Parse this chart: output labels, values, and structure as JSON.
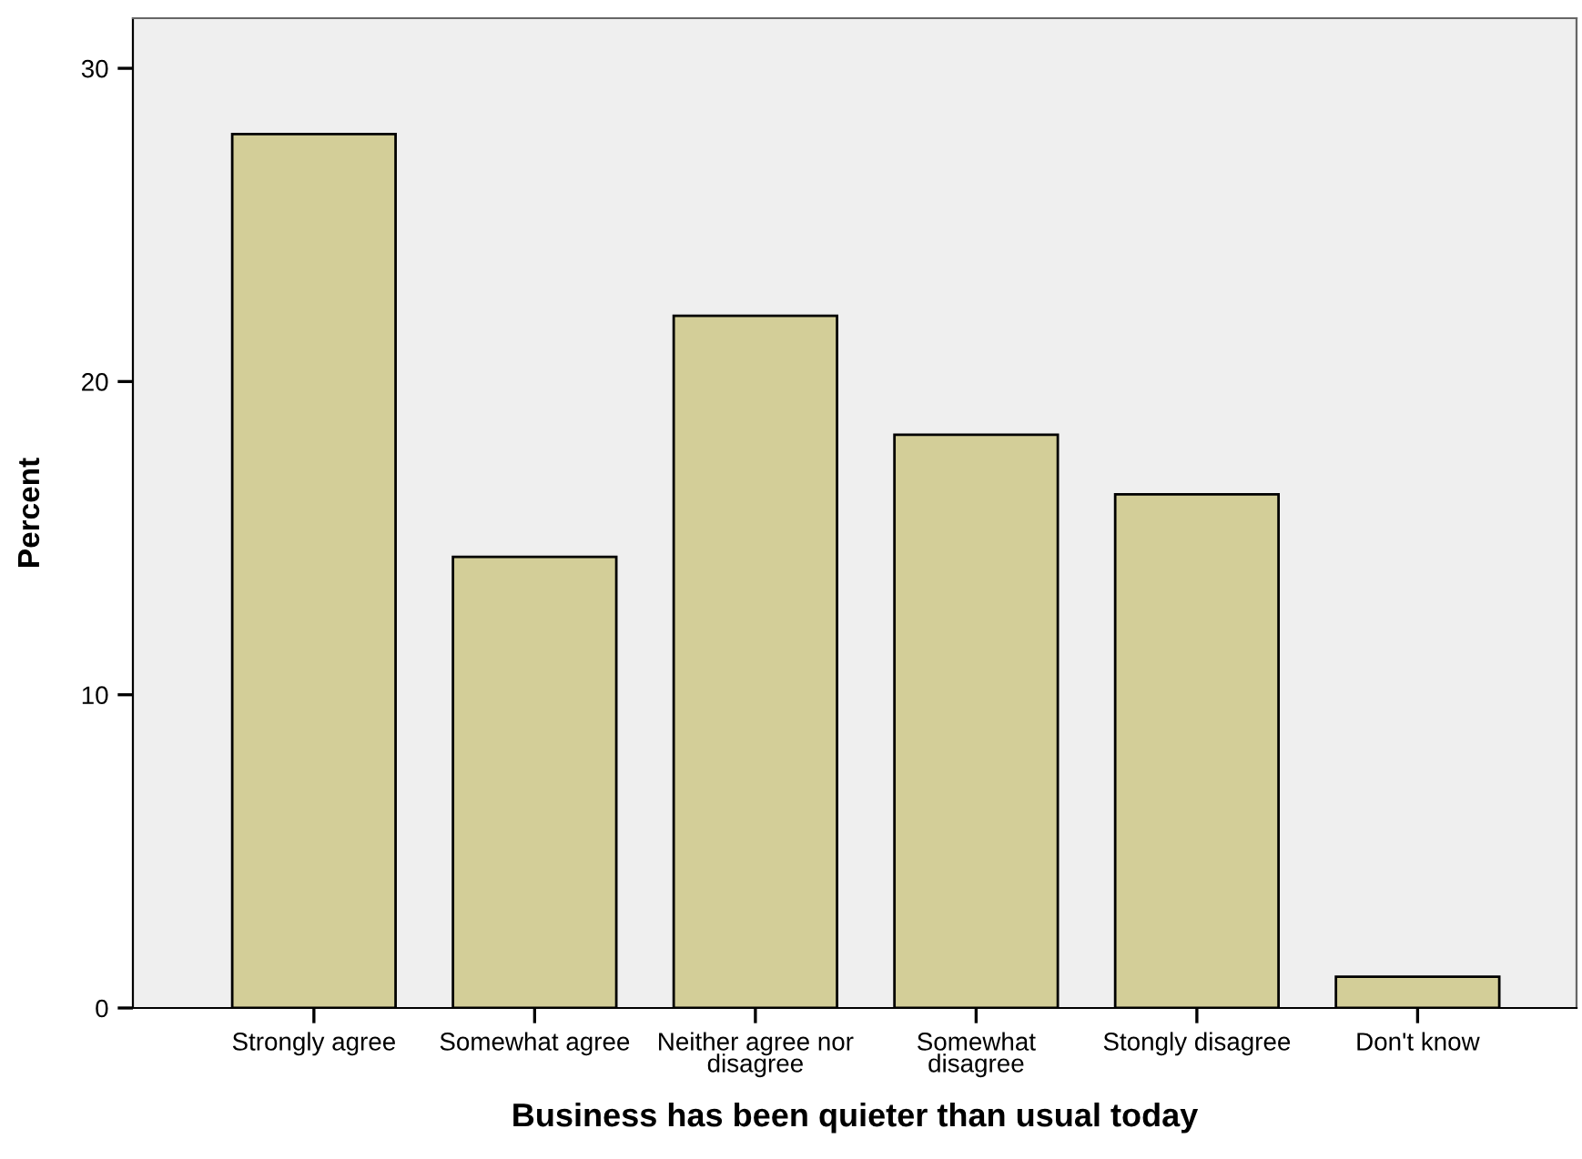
{
  "chart_data": {
    "type": "bar",
    "xlabel": "Business has been quieter than usual today",
    "ylabel": "Percent",
    "categories": [
      "Strongly agree",
      "Somewhat agree",
      "Neither agree nor\ndisagree",
      "Somewhat\ndisagree",
      "Stongly disagree",
      "Don't know"
    ],
    "values": [
      27.9,
      14.4,
      22.1,
      18.3,
      16.4,
      1.0
    ],
    "color": "#d3ce98",
    "ylim": [
      0,
      31.6
    ],
    "yticks": [
      0,
      10,
      20,
      30
    ],
    "grid": false
  }
}
